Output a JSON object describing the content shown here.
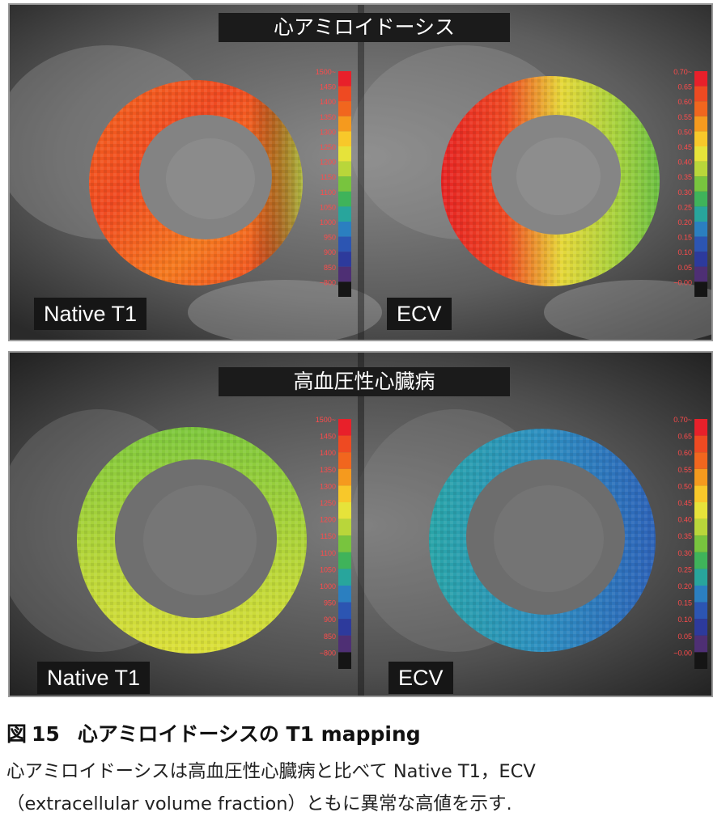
{
  "panels": {
    "top": {
      "title": "心アミロイドーシス",
      "left_label": "Native T1",
      "right_label": "ECV"
    },
    "bottom": {
      "title": "高血圧性心臓病",
      "left_label": "Native T1",
      "right_label": "ECV"
    }
  },
  "scales": {
    "t1": [
      "1500~",
      "1450",
      "1400",
      "1350",
      "1300",
      "1250",
      "1200",
      "1150",
      "1100",
      "1050",
      "1000",
      "950",
      "900",
      "850",
      "~800"
    ],
    "ecv": [
      "0.70~",
      "0.65",
      "0.60",
      "0.55",
      "0.50",
      "0.45",
      "0.40",
      "0.35",
      "0.30",
      "0.25",
      "0.20",
      "0.15",
      "0.10",
      "0.05",
      "~0.00"
    ],
    "colors": [
      "#e8202a",
      "#ee4a22",
      "#f1661e",
      "#f59a1e",
      "#f8c82a",
      "#e6e33a",
      "#b9d63a",
      "#78c43e",
      "#3fb35a",
      "#28a59c",
      "#2b7fc0",
      "#2c55b2",
      "#2d3a9c",
      "#4e2f74",
      "#151515"
    ]
  },
  "caption": {
    "figure_label": "図",
    "figure_number": "15",
    "title": "心アミロイドーシスの T1 mapping",
    "line1": "心アミロイドーシスは高血圧性心臓病と比べて Native T1，ECV",
    "line2": "（extracellular volume fraction）ともに異常な高値を示す."
  }
}
